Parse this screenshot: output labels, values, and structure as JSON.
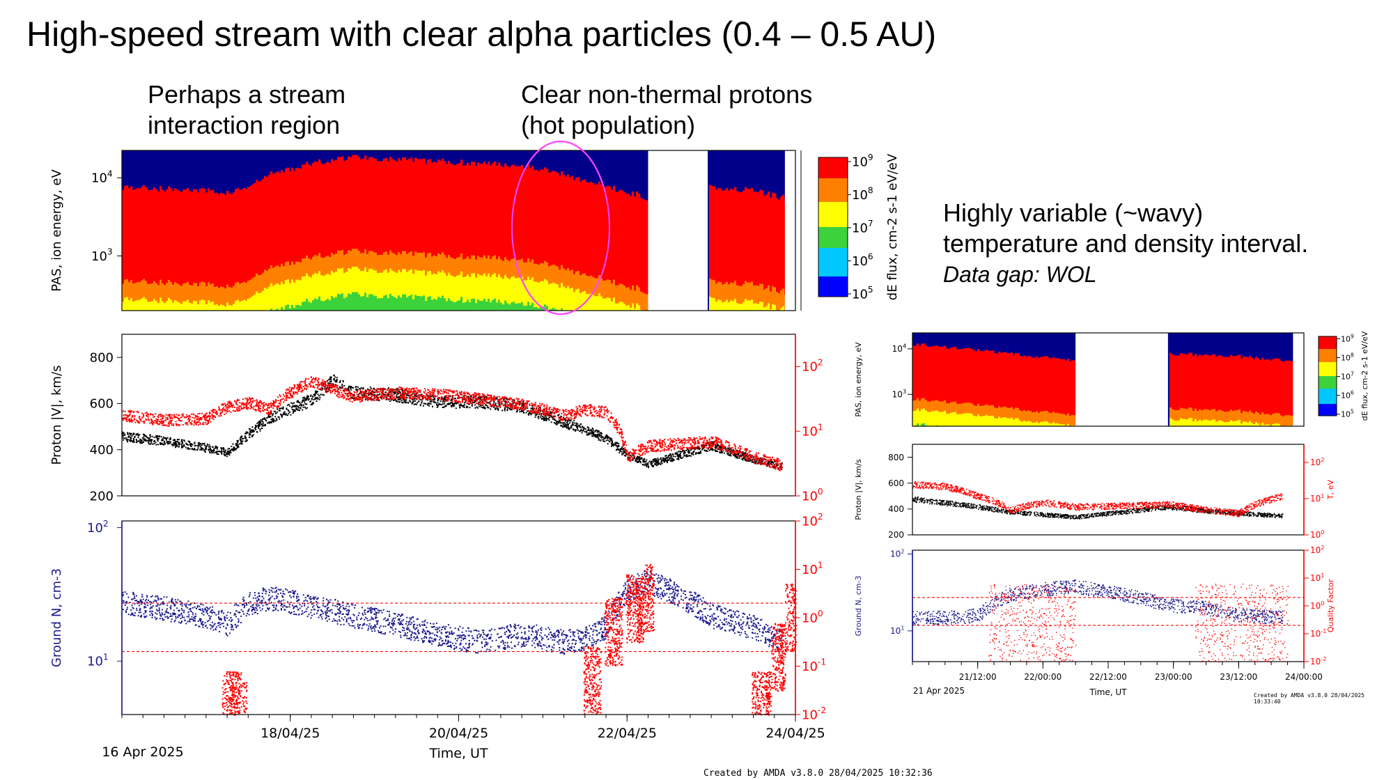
{
  "slide": {
    "title": "High-speed stream with clear alpha particles (0.4 – 0.5 AU)",
    "annotation_sir": [
      "Perhaps a stream",
      "interaction region"
    ],
    "annotation_hot": [
      "Clear non-thermal protons",
      "(hot population)"
    ],
    "annotation_wavy": [
      "Highly variable (~wavy)",
      "temperature and density interval.",
      "Data gap: WOL"
    ]
  },
  "colors": {
    "black_series": "#000000",
    "red_series": "#ff0000",
    "density_series": "#1a1a8c",
    "ellipse": "#ff44ff",
    "spectrogram_background": "#00008b"
  },
  "chart_data": [
    {
      "type": "heatmap",
      "panel": "left-energy-spectrogram",
      "ylabel": "PAS, ion energy, eV",
      "yticks": [
        "10^4",
        "10^3"
      ],
      "colorbar_label": "dE flux, cm^-2 s^-1 eV/eV",
      "colorbar_ticks": [
        "10^5",
        "10^6",
        "10^7",
        "10^8",
        "10^9"
      ],
      "x_range": [
        "2025-04-16",
        "2025-04-24"
      ],
      "data_gaps": [
        [
          "2025-04-22 06:00",
          "2025-04-22 23:00"
        ]
      ],
      "peak_energy_ev": [
        [
          "2025-04-16 00:00",
          900
        ],
        [
          "2025-04-16 12:00",
          850
        ],
        [
          "2025-04-17 00:00",
          800
        ],
        [
          "2025-04-17 06:00",
          750
        ],
        [
          "2025-04-17 12:00",
          900
        ],
        [
          "2025-04-17 18:00",
          1300
        ],
        [
          "2025-04-18 06:00",
          1800
        ],
        [
          "2025-04-18 18:00",
          2200
        ],
        [
          "2025-04-19 06:00",
          2000
        ],
        [
          "2025-04-19 18:00",
          1900
        ],
        [
          "2025-04-20 06:00",
          1800
        ],
        [
          "2025-04-20 18:00",
          1700
        ],
        [
          "2025-04-21 06:00",
          1300
        ],
        [
          "2025-04-21 18:00",
          900
        ],
        [
          "2025-04-22 06:00",
          650
        ],
        [
          "2025-04-23 00:00",
          900
        ],
        [
          "2025-04-23 12:00",
          800
        ],
        [
          "2025-04-23 20:00",
          650
        ]
      ]
    },
    {
      "type": "scatter",
      "panel": "left-velocity-temperature",
      "ylabel": "Proton |V|, km/s",
      "ylim": [
        200,
        900
      ],
      "yticks": [
        200,
        400,
        600,
        800
      ],
      "y2ticks": [
        "10^0",
        "10^1",
        "10^2"
      ],
      "x_range": [
        "2025-04-16",
        "2025-04-24"
      ],
      "series": [
        {
          "color": "black",
          "axis": "left",
          "x": [
            "2025-04-16 00:00",
            "2025-04-16 12:00",
            "2025-04-17 00:00",
            "2025-04-17 06:00",
            "2025-04-17 12:00",
            "2025-04-17 18:00",
            "2025-04-18 06:00",
            "2025-04-18 12:00",
            "2025-04-18 18:00",
            "2025-04-19 06:00",
            "2025-04-19 18:00",
            "2025-04-20 06:00",
            "2025-04-20 18:00",
            "2025-04-21 06:00",
            "2025-04-21 12:00",
            "2025-04-21 18:00",
            "2025-04-22 00:00",
            "2025-04-22 06:00",
            "2025-04-23 00:00",
            "2025-04-23 12:00",
            "2025-04-23 20:00"
          ],
          "y": [
            460,
            440,
            410,
            390,
            470,
            540,
            620,
            700,
            650,
            640,
            610,
            610,
            590,
            520,
            490,
            450,
            380,
            340,
            420,
            360,
            330
          ]
        },
        {
          "color": "red",
          "axis": "right-log",
          "x": [
            "2025-04-16 00:00",
            "2025-04-16 12:00",
            "2025-04-17 00:00",
            "2025-04-17 06:00",
            "2025-04-17 12:00",
            "2025-04-17 18:00",
            "2025-04-18 06:00",
            "2025-04-18 12:00",
            "2025-04-18 18:00",
            "2025-04-19 06:00",
            "2025-04-19 18:00",
            "2025-04-20 06:00",
            "2025-04-20 18:00",
            "2025-04-21 06:00",
            "2025-04-21 12:00",
            "2025-04-21 18:00",
            "2025-04-22 00:00",
            "2025-04-22 06:00",
            "2025-04-23 00:00",
            "2025-04-23 12:00",
            "2025-04-23 20:00"
          ],
          "y": [
            18,
            15,
            16,
            24,
            28,
            22,
            60,
            45,
            35,
            40,
            38,
            32,
            26,
            18,
            22,
            20,
            4,
            6,
            7,
            4,
            3
          ]
        }
      ]
    },
    {
      "type": "scatter",
      "panel": "left-density-quality",
      "ylabel": "Ground N, cm-3",
      "yticks": [
        "10^1",
        "10^2"
      ],
      "y2ticks": [
        "10^-2",
        "10^-1",
        "10^0",
        "10^1",
        "10^2"
      ],
      "x_range": [
        "2025-04-16",
        "2025-04-24"
      ],
      "xtick_labels": [
        "18/04/25",
        "20/04/25",
        "22/04/25",
        "24/04/25"
      ],
      "x_start_label": "16 Apr 2025",
      "xlabel": "Time, UT",
      "thresholds_quality": [
        2,
        0.2
      ],
      "series": [
        {
          "color": "navy",
          "axis": "left-log",
          "x": [
            "2025-04-16 00:00",
            "2025-04-16 12:00",
            "2025-04-17 00:00",
            "2025-04-17 06:00",
            "2025-04-17 12:00",
            "2025-04-17 18:00",
            "2025-04-18 06:00",
            "2025-04-18 18:00",
            "2025-04-19 06:00",
            "2025-04-19 18:00",
            "2025-04-20 06:00",
            "2025-04-20 18:00",
            "2025-04-21 06:00",
            "2025-04-21 12:00",
            "2025-04-21 18:00",
            "2025-04-22 00:00",
            "2025-04-22 06:00",
            "2025-04-23 00:00",
            "2025-04-23 12:00",
            "2025-04-23 20:00"
          ],
          "y": [
            28,
            25,
            22,
            19,
            27,
            30,
            26,
            22,
            19,
            16,
            14,
            16,
            14,
            15,
            18,
            35,
            40,
            22,
            18,
            14
          ]
        },
        {
          "color": "red",
          "axis": "right-log",
          "note": "scattered points",
          "x": [
            "2025-04-17 07:00",
            "2025-04-17 09:00",
            "2025-04-21 14:00",
            "2025-04-21 20:00",
            "2025-04-22 02:00",
            "2025-04-22 05:00",
            "2025-04-23 14:00",
            "2025-04-23 18:00",
            "2025-04-23 22:00"
          ],
          "y": [
            0.03,
            0.02,
            0.1,
            1,
            3,
            5,
            0.03,
            0.3,
            2
          ]
        }
      ]
    },
    {
      "type": "heatmap",
      "panel": "right-energy-spectrogram",
      "ylabel": "PAS, ion energy, eV",
      "yticks": [
        "10^4",
        "10^3"
      ],
      "colorbar_label": "dE flux, cm^-2 s^-1 eV/eV",
      "colorbar_ticks": [
        "10^5",
        "10^6",
        "10^7",
        "10^8",
        "10^9"
      ],
      "x_range": [
        "2025-04-21 00:00",
        "2025-04-24 00:00"
      ],
      "data_gaps": [
        [
          "2025-04-22 06:00",
          "2025-04-22 23:00"
        ]
      ]
    },
    {
      "type": "scatter",
      "panel": "right-velocity-temperature",
      "ylabel": "Proton |V|, km/s",
      "y2label": "T, eV",
      "yticks": [
        200,
        400,
        600,
        800
      ],
      "ylim": [
        200,
        900
      ],
      "y2ticks": [
        "10^0",
        "10^1",
        "10^2"
      ],
      "x_range": [
        "2025-04-21 00:00",
        "2025-04-24 00:00"
      ],
      "series": [
        {
          "color": "black",
          "axis": "left",
          "x": [
            "2025-04-21 00:00",
            "2025-04-21 06:00",
            "2025-04-21 12:00",
            "2025-04-21 18:00",
            "2025-04-22 00:00",
            "2025-04-22 06:00",
            "2025-04-22 23:00",
            "2025-04-23 06:00",
            "2025-04-23 12:00",
            "2025-04-23 20:00"
          ],
          "y": [
            480,
            450,
            420,
            380,
            360,
            340,
            420,
            390,
            370,
            350
          ]
        },
        {
          "color": "red",
          "axis": "right-log",
          "x": [
            "2025-04-21 00:00",
            "2025-04-21 06:00",
            "2025-04-21 12:00",
            "2025-04-21 18:00",
            "2025-04-22 00:00",
            "2025-04-22 06:00",
            "2025-04-22 23:00",
            "2025-04-23 06:00",
            "2025-04-23 12:00",
            "2025-04-23 20:00"
          ],
          "y": [
            25,
            22,
            12,
            5,
            8,
            6,
            7,
            5,
            4,
            12
          ]
        }
      ]
    },
    {
      "type": "scatter",
      "panel": "right-density-quality",
      "ylabel": "Ground N, cm-3",
      "y2label": "Quality Factor",
      "yticks": [
        "10^1",
        "10^2"
      ],
      "y2ticks": [
        "10^-2",
        "10^-1",
        "10^0",
        "10^1",
        "10^2"
      ],
      "x_range": [
        "2025-04-21 00:00",
        "2025-04-24 00:00"
      ],
      "xtick_labels": [
        "21/12:00",
        "22/00:00",
        "22/12:00",
        "23/00:00",
        "23/12:00",
        "24/00:00"
      ],
      "x_start_label": "21 Apr 2025",
      "xlabel": "Time, UT",
      "thresholds_quality": [
        2,
        0.2
      ],
      "series": [
        {
          "color": "navy",
          "axis": "left-log",
          "x": [
            "2025-04-21 00:00",
            "2025-04-21 06:00",
            "2025-04-21 12:00",
            "2025-04-21 18:00",
            "2025-04-22 00:00",
            "2025-04-22 06:00",
            "2025-04-22 23:00",
            "2025-04-23 06:00",
            "2025-04-23 12:00",
            "2025-04-23 20:00"
          ],
          "y": [
            15,
            15,
            16,
            30,
            35,
            38,
            22,
            20,
            16,
            15
          ]
        }
      ]
    }
  ],
  "credits": {
    "left": "Created by AMDA v3.8.0 28/04/2025 10:32:36",
    "right": "Created by AMDA v3.8.0 28/04/2025 10:33:40"
  }
}
